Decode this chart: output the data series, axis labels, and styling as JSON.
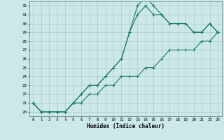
{
  "title": "",
  "xlabel": "Humidex (Indice chaleur)",
  "bg_color": "#cce8e8",
  "grid_color": "#aacccc",
  "line_color": "#1a7a6e",
  "x_values": [
    0,
    1,
    2,
    3,
    4,
    5,
    6,
    7,
    8,
    9,
    10,
    11,
    12,
    13,
    14,
    15,
    16,
    17,
    18,
    19,
    20,
    21,
    22,
    23
  ],
  "line1": [
    21,
    20,
    20,
    20,
    20,
    21,
    22,
    23,
    23,
    24,
    25,
    26,
    29,
    32,
    33,
    32,
    31,
    30,
    30,
    30,
    29,
    29,
    30,
    29
  ],
  "line2": [
    21,
    20,
    20,
    20,
    20,
    21,
    22,
    23,
    23,
    24,
    25,
    26,
    29,
    31,
    32,
    31,
    31,
    30,
    30,
    30,
    29,
    29,
    30,
    29
  ],
  "line3": [
    21,
    20,
    20,
    20,
    20,
    21,
    21,
    22,
    22,
    23,
    23,
    24,
    24,
    24,
    25,
    25,
    26,
    27,
    27,
    27,
    27,
    28,
    28,
    29
  ],
  "xmin": -0.5,
  "xmax": 23.5,
  "ymin": 19.5,
  "ymax": 32.5,
  "yticks": [
    20,
    21,
    22,
    23,
    24,
    25,
    26,
    27,
    28,
    29,
    30,
    31,
    32
  ],
  "xticks": [
    0,
    1,
    2,
    3,
    4,
    5,
    6,
    7,
    8,
    9,
    10,
    11,
    12,
    13,
    14,
    15,
    16,
    17,
    18,
    19,
    20,
    21,
    22,
    23
  ]
}
